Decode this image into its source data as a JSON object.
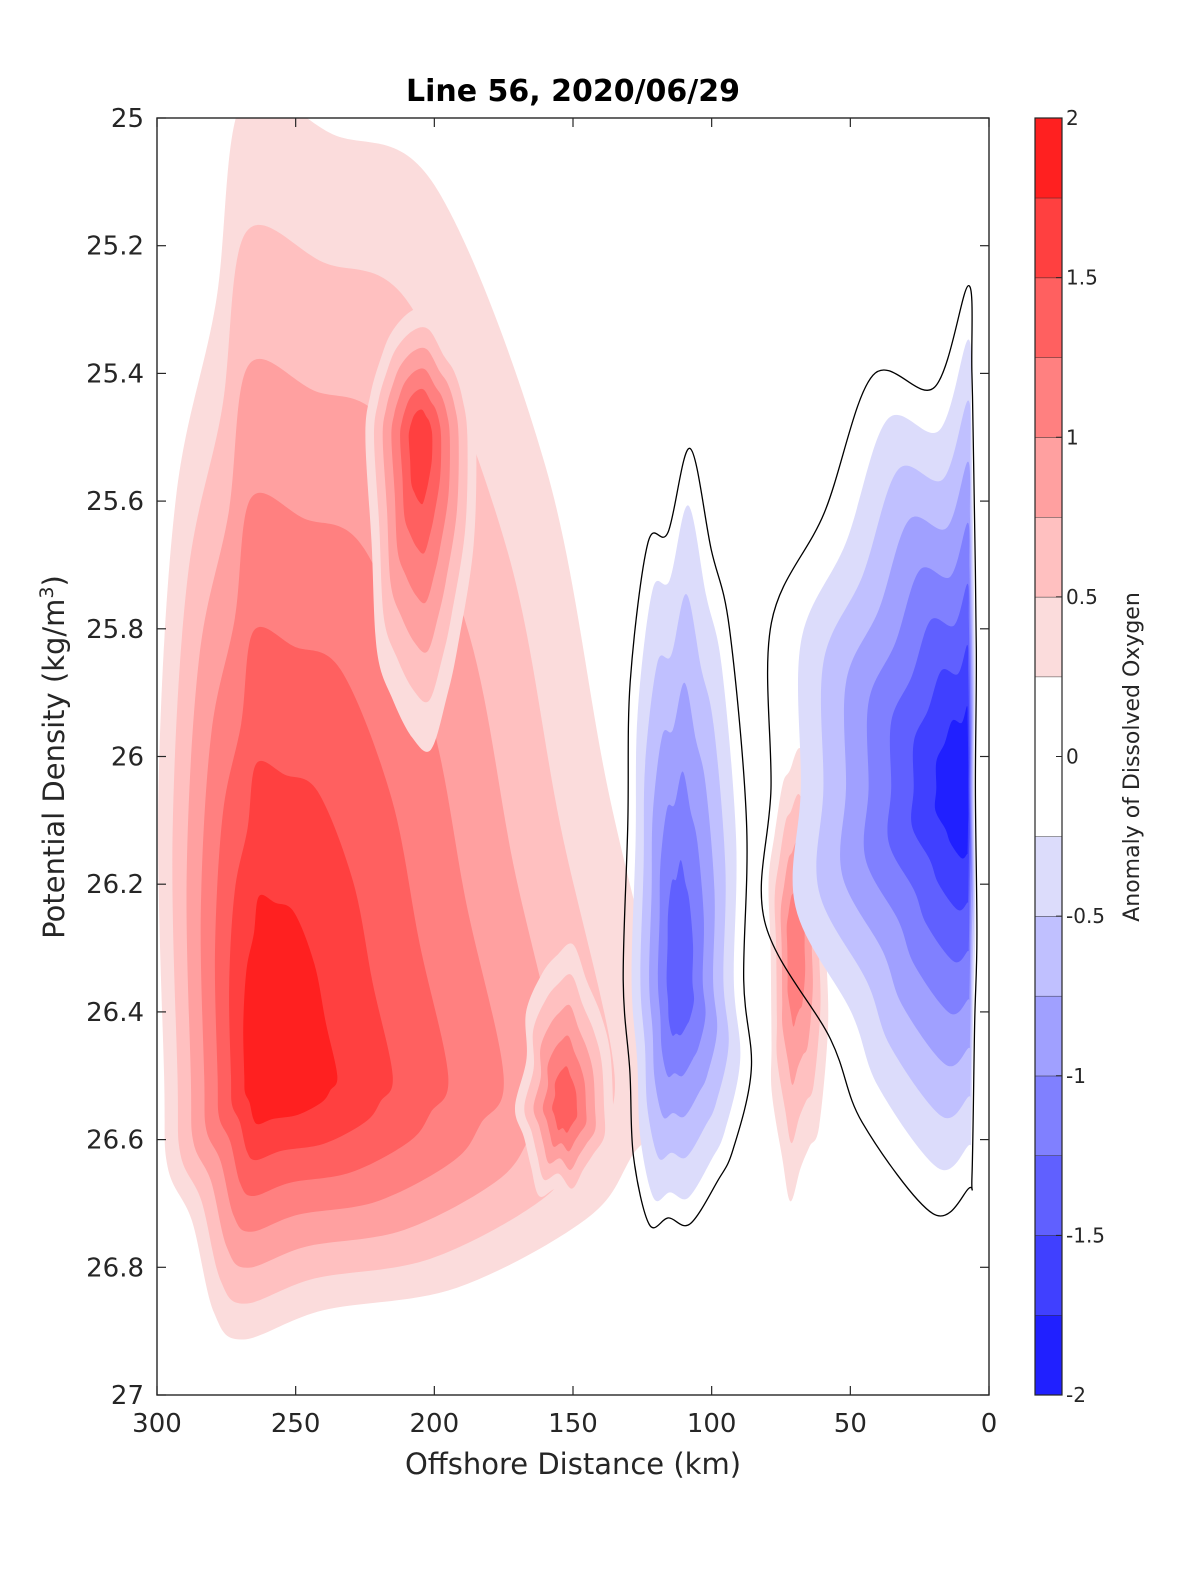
{
  "chart_data": {
    "type": "heatmap",
    "subtype": "filled-contour",
    "title": "Line 56, 2020/06/29",
    "xlabel": "Offshore Distance (km)",
    "ylabel_main": "Potential Density (kg/m",
    "ylabel_sup": "3",
    "ylabel_close": ")",
    "xlim": [
      300,
      0
    ],
    "x_reversed": true,
    "ylim": [
      25,
      27
    ],
    "y_reversed": true,
    "xticks": [
      300,
      250,
      200,
      150,
      100,
      50,
      0
    ],
    "yticks": [
      25,
      25.2,
      25.4,
      25.6,
      25.8,
      26,
      26.2,
      26.4,
      26.6,
      26.8,
      27
    ],
    "colorbar": {
      "label": "Anomaly of Dissolved Oxygen",
      "limits": [
        -2,
        2
      ],
      "ticks": [
        "-2",
        "-1.5",
        "-1",
        "-0.5",
        "0",
        "0.5",
        "1",
        "1.5",
        "2"
      ],
      "levels": [
        -2,
        -1.75,
        -1.5,
        -1.25,
        -1,
        -0.75,
        -0.5,
        -0.25,
        0.25,
        0.5,
        0.75,
        1,
        1.25,
        1.5,
        1.75,
        2
      ],
      "colors": [
        "#0000ff",
        "#2020ff",
        "#4040ff",
        "#6060ff",
        "#8080ff",
        "#a0a0ff",
        "#c0c0ff",
        "#dcdcfb",
        "#ffffff",
        "#fbdcdc",
        "#ffc0c0",
        "#ffa0a0",
        "#ff8080",
        "#ff6060",
        "#ff4040",
        "#ff2020",
        "#ff0000"
      ]
    },
    "zero_contour_color": "#000000",
    "features": [
      {
        "sign": "positive",
        "x_range": [
          300,
          120
        ],
        "y_range": [
          25,
          26.9
        ],
        "peak_value": 1.75,
        "peak_location": [
          262,
          26.5
        ]
      },
      {
        "sign": "positive",
        "x_range": [
          225,
          185
        ],
        "y_range": [
          25.3,
          26.0
        ],
        "peak_value": 1.5,
        "peak_location": [
          205,
          25.5
        ]
      },
      {
        "sign": "positive",
        "x_range": [
          170,
          135
        ],
        "y_range": [
          26.3,
          26.7
        ],
        "peak_value": 1.25,
        "peak_location": [
          153,
          26.55
        ]
      },
      {
        "sign": "positive",
        "x_range": [
          80,
          58
        ],
        "y_range": [
          26.0,
          26.7
        ],
        "peak_value": 1.0,
        "peak_location": [
          70,
          26.3
        ]
      },
      {
        "sign": "negative",
        "x_range": [
          130,
          90
        ],
        "y_range": [
          25.65,
          26.72
        ],
        "peak_value": -1.25,
        "peak_location": [
          112,
          26.35
        ]
      },
      {
        "sign": "negative",
        "x_range": [
          68,
          5
        ],
        "y_range": [
          25.4,
          26.62
        ],
        "peak_value": -1.75,
        "peak_location": [
          8,
          26.05
        ]
      }
    ]
  }
}
